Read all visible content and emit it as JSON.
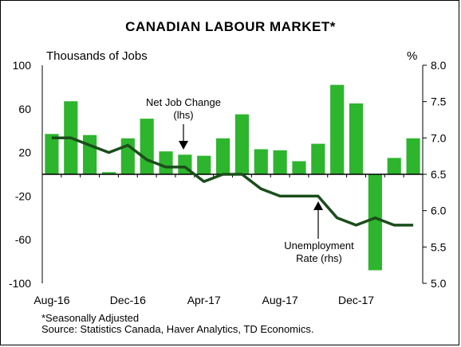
{
  "chart_data": {
    "type": "bar+line",
    "title": "CANADIAN LABOUR MARKET*",
    "left_axis_label": "Thousands of Jobs",
    "right_axis_label": "%",
    "left_ylim": [
      -100,
      100
    ],
    "left_ticks": [
      100,
      60,
      20,
      -20,
      -60,
      -100
    ],
    "right_ylim": [
      5.0,
      8.0
    ],
    "right_ticks": [
      "8.0",
      "7.5",
      "7.0",
      "6.5",
      "6.0",
      "5.5",
      "5.0"
    ],
    "x_tick_labels": [
      "Aug-16",
      "Dec-16",
      "Apr-17",
      "Aug-17",
      "Dec-17"
    ],
    "categories": [
      "Aug-16",
      "Sep-16",
      "Oct-16",
      "Nov-16",
      "Dec-16",
      "Jan-17",
      "Feb-17",
      "Mar-17",
      "Apr-17",
      "May-17",
      "Jun-17",
      "Jul-17",
      "Aug-17",
      "Sep-17",
      "Oct-17",
      "Nov-17",
      "Dec-17",
      "Jan-18",
      "Feb-18",
      "Mar-18"
    ],
    "series": [
      {
        "name": "Net Job Change (lhs)",
        "type": "bar",
        "axis": "left",
        "color": "#2db52d",
        "values": [
          37,
          67,
          36,
          2,
          33,
          51,
          21,
          18,
          17,
          33,
          55,
          23,
          22,
          12,
          28,
          82,
          65,
          -88,
          15,
          33
        ]
      },
      {
        "name": "Unemployment Rate (rhs)",
        "type": "line",
        "axis": "right",
        "color": "#1b4d1b",
        "values": [
          7.0,
          7.0,
          6.9,
          6.8,
          6.9,
          6.7,
          6.6,
          6.6,
          6.4,
          6.5,
          6.5,
          6.3,
          6.2,
          6.2,
          6.2,
          5.9,
          5.8,
          5.9,
          5.8,
          5.8
        ]
      }
    ],
    "annotations": {
      "net_job_line1": "Net Job Change",
      "net_job_line2": "(lhs)",
      "unemp_line1": "Unemployment",
      "unemp_line2": "Rate (rhs)"
    },
    "footnote_1": "*Seasonally Adjusted",
    "footnote_2": "Source: Statistics Canada, Haver Analytics, TD Economics."
  }
}
